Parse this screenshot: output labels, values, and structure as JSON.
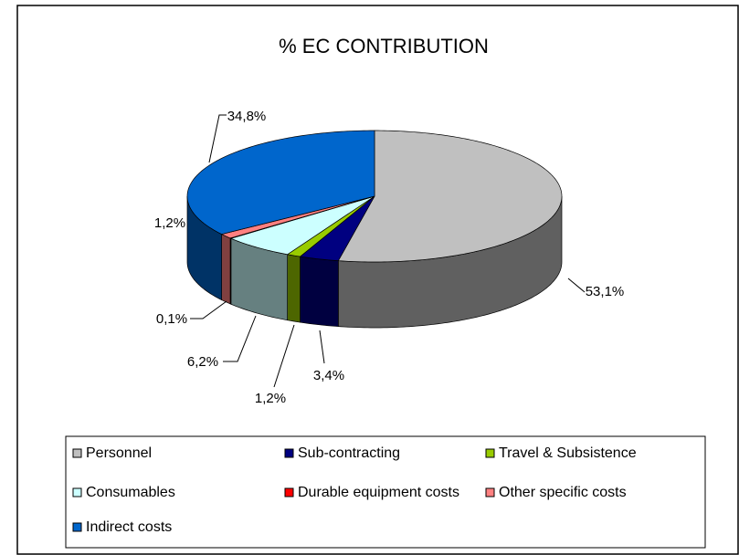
{
  "chart_data": {
    "type": "pie3d",
    "title": "% EC CONTRIBUTION",
    "categories": [
      "Personnel",
      "Sub-contracting",
      "Travel & Subsistence",
      "Consumables",
      "Durable equipment costs",
      "Other specific costs",
      "Indirect costs"
    ],
    "values": [
      53.1,
      3.4,
      1.2,
      6.2,
      0.1,
      1.2,
      34.8
    ],
    "value_labels": [
      "53,1%",
      "3,4%",
      "1,2%",
      "6,2%",
      "0,1%",
      "1,2%",
      "34,8%"
    ],
    "colors": [
      "#c0c0c0",
      "#000080",
      "#99cc00",
      "#ccffff",
      "#ff0000",
      "#ff8080",
      "#0066cc"
    ],
    "legend": "bottom"
  }
}
